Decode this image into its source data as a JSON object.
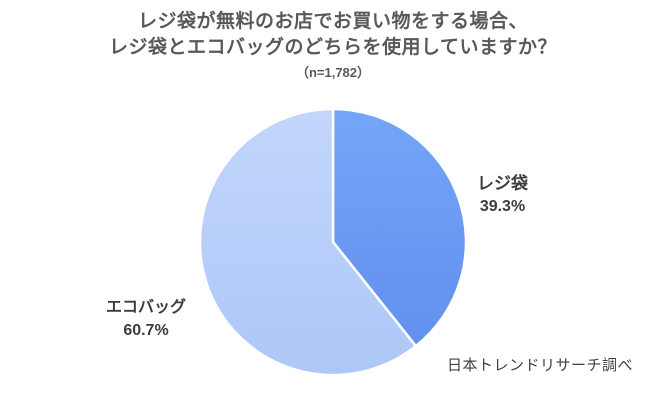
{
  "chart_data": {
    "type": "pie",
    "title_lines": [
      "レジ袋が無料のお店でお買い物をする場合、",
      "レジ袋とエコバッグのどちらを使用していますか？"
    ],
    "sample_label": "（n=1,782）",
    "slices": [
      {
        "label": "レジ袋",
        "value": 39.3,
        "percent_label": "39.3%",
        "color_top": "#75a5f7",
        "color_bottom": "#6190ef"
      },
      {
        "label": "エコバッグ",
        "value": 60.7,
        "percent_label": "60.7%",
        "color_top": "#c2d6fb",
        "color_bottom": "#adc7f8"
      }
    ],
    "start_angle_deg": -90,
    "direction": "clockwise",
    "divider_color": "#ffffff",
    "source": "日本トレンドリサーチ調べ",
    "text_colors": {
      "title": "#595959",
      "labels": "#3d3d3d",
      "source": "#404040"
    }
  }
}
